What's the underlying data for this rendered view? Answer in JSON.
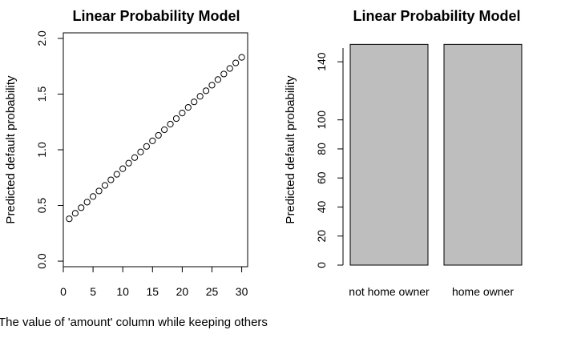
{
  "chart_data": [
    {
      "type": "scatter",
      "title": "Linear Probability Model",
      "xlabel": "The value of 'amount' column while keeping others",
      "ylabel": "Predicted default probability",
      "xlim": [
        0,
        31
      ],
      "ylim": [
        -0.05,
        2.05
      ],
      "xticks": [
        0,
        5,
        10,
        15,
        20,
        25,
        30
      ],
      "yticks": [
        0.0,
        0.5,
        1.0,
        1.5,
        2.0
      ],
      "tick_labels_x": [
        "0",
        "5",
        "10",
        "15",
        "20",
        "25",
        "30"
      ],
      "tick_labels_y": [
        "0.0",
        "0.5",
        "1.0",
        "1.5",
        "2.0"
      ],
      "points": {
        "x": [
          1,
          2,
          3,
          4,
          5,
          6,
          7,
          8,
          9,
          10,
          11,
          12,
          13,
          14,
          15,
          16,
          17,
          18,
          19,
          20,
          21,
          22,
          23,
          24,
          25,
          26,
          27,
          28,
          29,
          30
        ],
        "y": [
          0.38,
          0.43,
          0.48,
          0.53,
          0.58,
          0.63,
          0.68,
          0.73,
          0.78,
          0.83,
          0.88,
          0.93,
          0.98,
          1.03,
          1.08,
          1.13,
          1.18,
          1.23,
          1.28,
          1.33,
          1.38,
          1.43,
          1.48,
          1.53,
          1.58,
          1.63,
          1.68,
          1.73,
          1.78,
          1.83
        ]
      },
      "marker": "open-circle",
      "grid": false
    },
    {
      "type": "bar",
      "title": "Linear Probability Model",
      "xlabel": "",
      "ylabel": "Predicted default probability",
      "categories": [
        "not home owner",
        "home owner"
      ],
      "values": [
        152,
        152
      ],
      "ylim": [
        0,
        150
      ],
      "yticks": [
        0,
        20,
        40,
        60,
        80,
        100,
        140
      ],
      "tick_labels_y": [
        "0",
        "20",
        "40",
        "60",
        "80",
        "100",
        "140"
      ],
      "bar_color": "#bebebe",
      "grid": false
    }
  ]
}
